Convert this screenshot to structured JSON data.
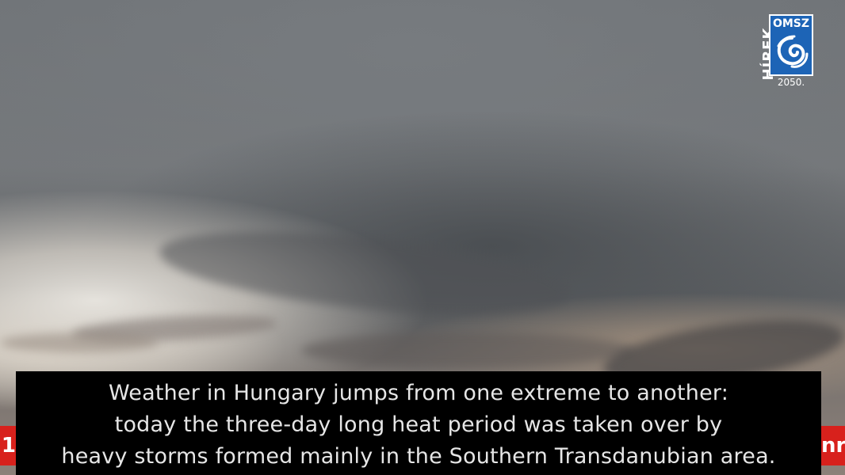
{
  "logo": {
    "vertical_text": "HÍREK",
    "badge_text": "OMSZ",
    "year_text": "2050."
  },
  "subtitle": {
    "lines": [
      "Weather in Hungary jumps from one extreme to another:",
      "today the three-day long heat period was taken over by",
      "heavy storms formed mainly in the Southern Transdanubian area."
    ]
  },
  "ticker": {
    "left_fragment": "1",
    "right_fragment": "nr"
  },
  "colors": {
    "subtitle_background": "#000000",
    "subtitle_text": "#e6e6e6",
    "ticker_red": "#d8211c",
    "logo_blue": "#1d64b6"
  }
}
